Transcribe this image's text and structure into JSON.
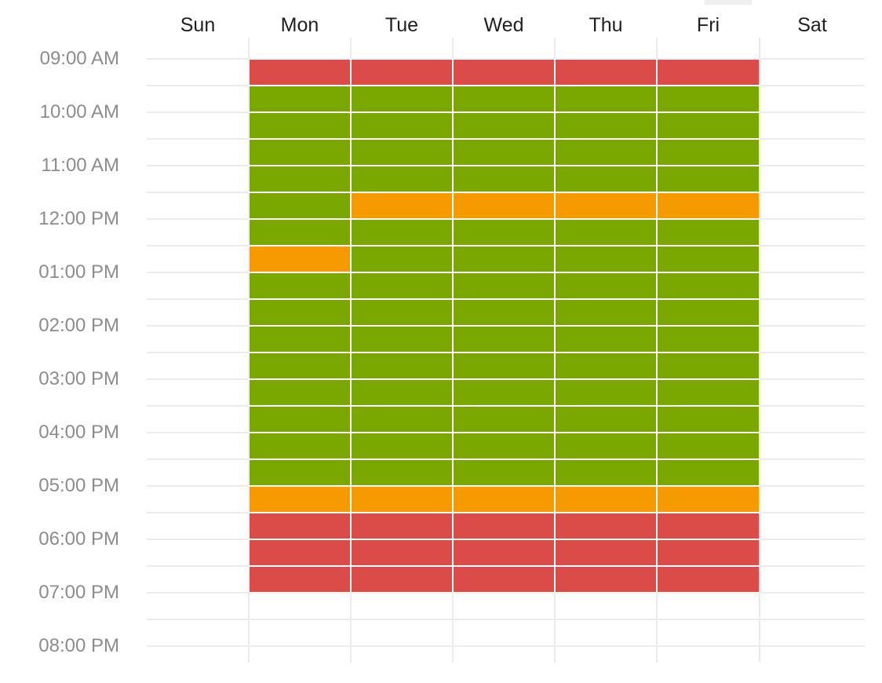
{
  "days": [
    "Sun",
    "Mon",
    "Tue",
    "Wed",
    "Thu",
    "Fri",
    "Sat"
  ],
  "times": [
    "09:00 AM",
    "10:00 AM",
    "11:00 AM",
    "12:00 PM",
    "01:00 PM",
    "02:00 PM",
    "03:00 PM",
    "04:00 PM",
    "05:00 PM",
    "06:00 PM",
    "07:00 PM",
    "08:00 PM"
  ],
  "colors": {
    "r": "#db4c48",
    "g": "#7aa800",
    "o": "#f59a00"
  },
  "schedule": [
    "rggggggoggggggggorrr",
    "rggggoggggggggggorrr",
    "rggggoggggggggggorrr",
    "rggggoggggggggggorrr",
    "rggggoggggggggggorrr"
  ]
}
